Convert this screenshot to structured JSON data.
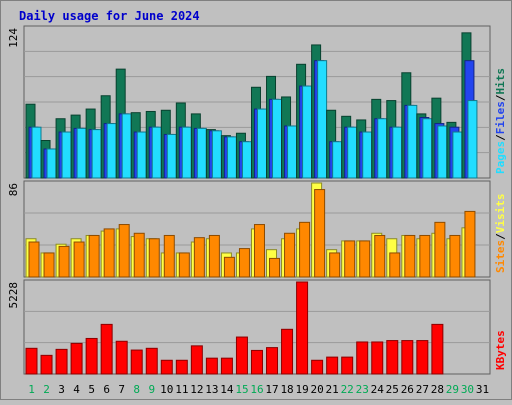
{
  "chart_data": [
    {
      "type": "bar",
      "title": "Daily usage for June 2024",
      "ymax_label": "124",
      "ylabel_parts": [
        "Pages",
        "Files",
        "Hits"
      ],
      "categories": [
        "1",
        "2",
        "3",
        "4",
        "5",
        "6",
        "7",
        "8",
        "9",
        "10",
        "11",
        "12",
        "13",
        "14",
        "15",
        "16",
        "17",
        "18",
        "19",
        "20",
        "21",
        "22",
        "23",
        "24",
        "25",
        "26",
        "27",
        "28",
        "29",
        "30",
        "31"
      ],
      "weekend_days": [
        "1",
        "2",
        "8",
        "9",
        "15",
        "16",
        "22",
        "23",
        "29",
        "30"
      ],
      "ylim": [
        0,
        124
      ],
      "series": [
        {
          "name": "Hits",
          "values": [
            61,
            31,
            49,
            52,
            57,
            68,
            90,
            54,
            55,
            56,
            62,
            53,
            40,
            35,
            37,
            75,
            84,
            67,
            94,
            110,
            56,
            51,
            48,
            65,
            64,
            87,
            53,
            66,
            46,
            120,
            0
          ]
        },
        {
          "name": "Files",
          "values": [
            42,
            24,
            38,
            41,
            40,
            45,
            53,
            38,
            42,
            36,
            42,
            41,
            39,
            34,
            30,
            57,
            65,
            43,
            76,
            97,
            30,
            42,
            38,
            49,
            42,
            60,
            50,
            45,
            42,
            97,
            0
          ]
        },
        {
          "name": "Pages",
          "values": [
            42,
            24,
            38,
            41,
            40,
            45,
            53,
            38,
            42,
            36,
            42,
            41,
            39,
            34,
            30,
            57,
            65,
            43,
            76,
            97,
            30,
            42,
            38,
            49,
            42,
            60,
            49,
            43,
            38,
            64,
            0
          ]
        }
      ],
      "colors": {
        "Hits": "#117755",
        "Files": "#2244EE",
        "Pages": "#22DDFF"
      }
    },
    {
      "type": "bar",
      "ymax_label": "86",
      "ylabel_parts": [
        "Sites",
        "Visits"
      ],
      "categories": [
        "1",
        "2",
        "3",
        "4",
        "5",
        "6",
        "7",
        "8",
        "9",
        "10",
        "11",
        "12",
        "13",
        "14",
        "15",
        "16",
        "17",
        "18",
        "19",
        "20",
        "21",
        "22",
        "23",
        "24",
        "25",
        "26",
        "27",
        "28",
        "29",
        "30",
        "31"
      ],
      "ylim": [
        0,
        86
      ],
      "series": [
        {
          "name": "Visits",
          "values": [
            35,
            22,
            30,
            35,
            38,
            42,
            44,
            37,
            35,
            22,
            22,
            32,
            35,
            22,
            22,
            44,
            25,
            35,
            44,
            86,
            25,
            33,
            33,
            40,
            35,
            38,
            35,
            40,
            35,
            45,
            0
          ]
        },
        {
          "name": "Sites",
          "values": [
            32,
            22,
            28,
            32,
            38,
            44,
            48,
            40,
            35,
            38,
            22,
            36,
            38,
            18,
            26,
            48,
            17,
            40,
            50,
            80,
            22,
            33,
            33,
            38,
            22,
            38,
            38,
            50,
            38,
            60,
            0
          ]
        }
      ],
      "colors": {
        "Visits": "#FFFF44",
        "Sites": "#FF8800"
      }
    },
    {
      "type": "bar",
      "ymax_label": "5228",
      "ylabel_parts": [
        "KBytes"
      ],
      "categories": [
        "1",
        "2",
        "3",
        "4",
        "5",
        "6",
        "7",
        "8",
        "9",
        "10",
        "11",
        "12",
        "13",
        "14",
        "15",
        "16",
        "17",
        "18",
        "19",
        "20",
        "21",
        "22",
        "23",
        "24",
        "25",
        "26",
        "27",
        "28",
        "29",
        "30",
        "31"
      ],
      "ylim": [
        0,
        5228
      ],
      "series": [
        {
          "name": "KBytes",
          "values": [
            1460,
            1060,
            1400,
            1740,
            2020,
            2820,
            1860,
            1360,
            1460,
            780,
            780,
            1600,
            900,
            900,
            2100,
            1340,
            1500,
            2540,
            5228,
            780,
            960,
            960,
            1820,
            1820,
            1900,
            1900,
            1900,
            2820,
            0,
            0,
            0
          ]
        }
      ],
      "colors": {
        "KBytes": "#FF0000"
      }
    }
  ]
}
